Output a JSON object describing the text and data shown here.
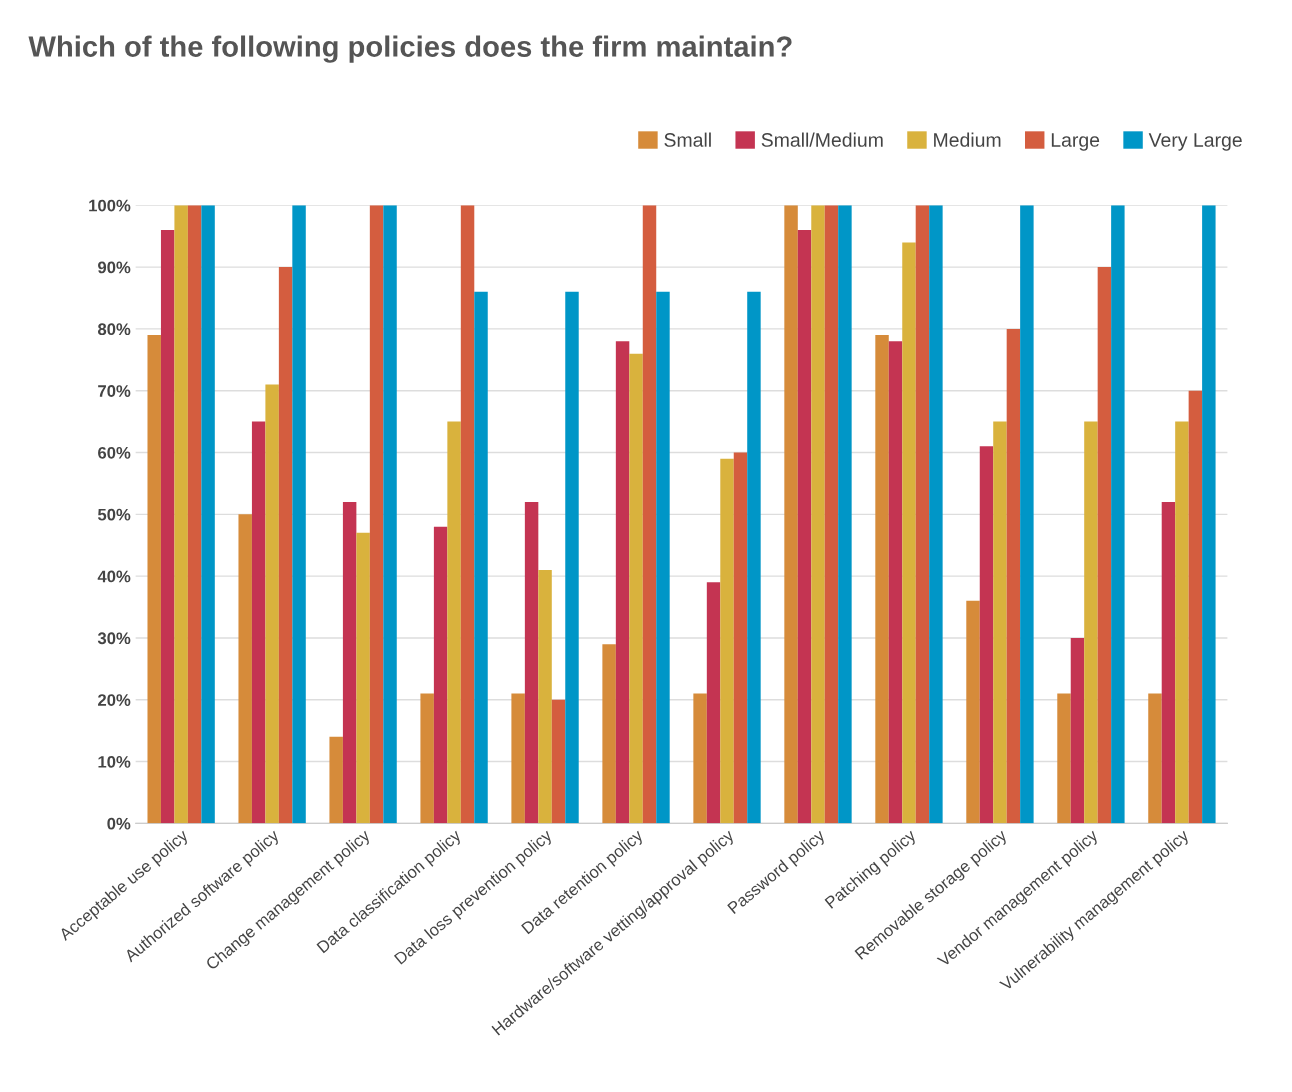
{
  "chart_data": {
    "type": "bar",
    "title": "Which of the following policies does the firm maintain?",
    "categories": [
      "Acceptable use policy",
      "Authorized software policy",
      "Change management policy",
      "Data classification policy",
      "Data loss prevention policy",
      "Data retention policy",
      "Hardware/software vetting/approval policy",
      "Password policy",
      "Patching policy",
      "Removable storage policy",
      "Vendor management policy",
      "Vulnerability management policy"
    ],
    "series": [
      {
        "name": "Small",
        "color": "#d68b3a",
        "values": [
          79,
          50,
          14,
          21,
          21,
          29,
          21,
          100,
          79,
          36,
          21,
          21
        ]
      },
      {
        "name": "Small/Medium",
        "color": "#c43452",
        "values": [
          96,
          65,
          52,
          48,
          52,
          78,
          39,
          96,
          78,
          61,
          30,
          52
        ]
      },
      {
        "name": "Medium",
        "color": "#d9b23d",
        "values": [
          100,
          71,
          47,
          65,
          41,
          76,
          59,
          100,
          94,
          65,
          65,
          65
        ]
      },
      {
        "name": "Large",
        "color": "#d45d3f",
        "values": [
          100,
          90,
          100,
          100,
          20,
          100,
          60,
          100,
          100,
          80,
          90,
          70
        ]
      },
      {
        "name": "Very Large",
        "color": "#0096c7",
        "values": [
          100,
          100,
          100,
          86,
          86,
          86,
          86,
          100,
          100,
          100,
          100,
          100
        ]
      }
    ],
    "ylim": [
      0,
      100
    ],
    "yticks": [
      {
        "value": 0,
        "label": "0%"
      },
      {
        "value": 10,
        "label": "10%"
      },
      {
        "value": 20,
        "label": "20%"
      },
      {
        "value": 30,
        "label": "30%"
      },
      {
        "value": 40,
        "label": "40%"
      },
      {
        "value": 50,
        "label": "50%"
      },
      {
        "value": 60,
        "label": "60%"
      },
      {
        "value": 70,
        "label": "70%"
      },
      {
        "value": 80,
        "label": "80%"
      },
      {
        "value": 90,
        "label": "90%"
      },
      {
        "value": 100,
        "label": "100%"
      }
    ],
    "grid": "y",
    "legend": "top right"
  }
}
